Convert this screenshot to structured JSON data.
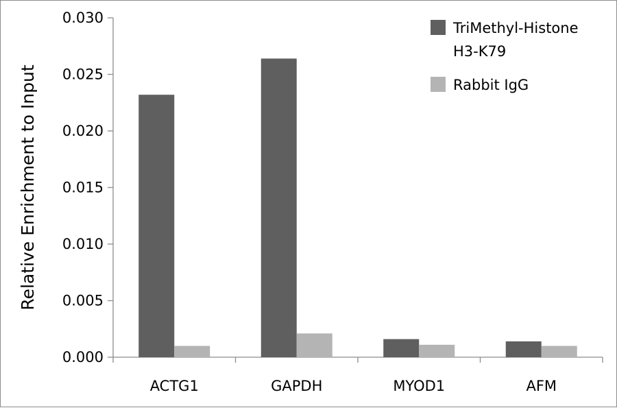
{
  "chart_data": {
    "type": "bar",
    "title": "",
    "xlabel": "",
    "ylabel": "Relative Enrichment to Input",
    "ylim": [
      0,
      0.03
    ],
    "yticks": [
      "0.000",
      "0.005",
      "0.010",
      "0.015",
      "0.020",
      "0.025",
      "0.030"
    ],
    "categories": [
      "ACTG1",
      "GAPDH",
      "MYOD1",
      "AFM"
    ],
    "series": [
      {
        "name": "TriMethyl-Histone H3-K79",
        "legend_lines": [
          "TriMethyl-Histone",
          "H3-K79"
        ],
        "values": [
          0.0232,
          0.0264,
          0.0016,
          0.0014
        ],
        "color": "#5f5f5f"
      },
      {
        "name": "Rabbit IgG",
        "legend_lines": [
          "Rabbit IgG"
        ],
        "values": [
          0.001,
          0.0021,
          0.0011,
          0.001
        ],
        "color": "#b4b4b4"
      }
    ],
    "grid": false,
    "legend_position": "top-right"
  }
}
